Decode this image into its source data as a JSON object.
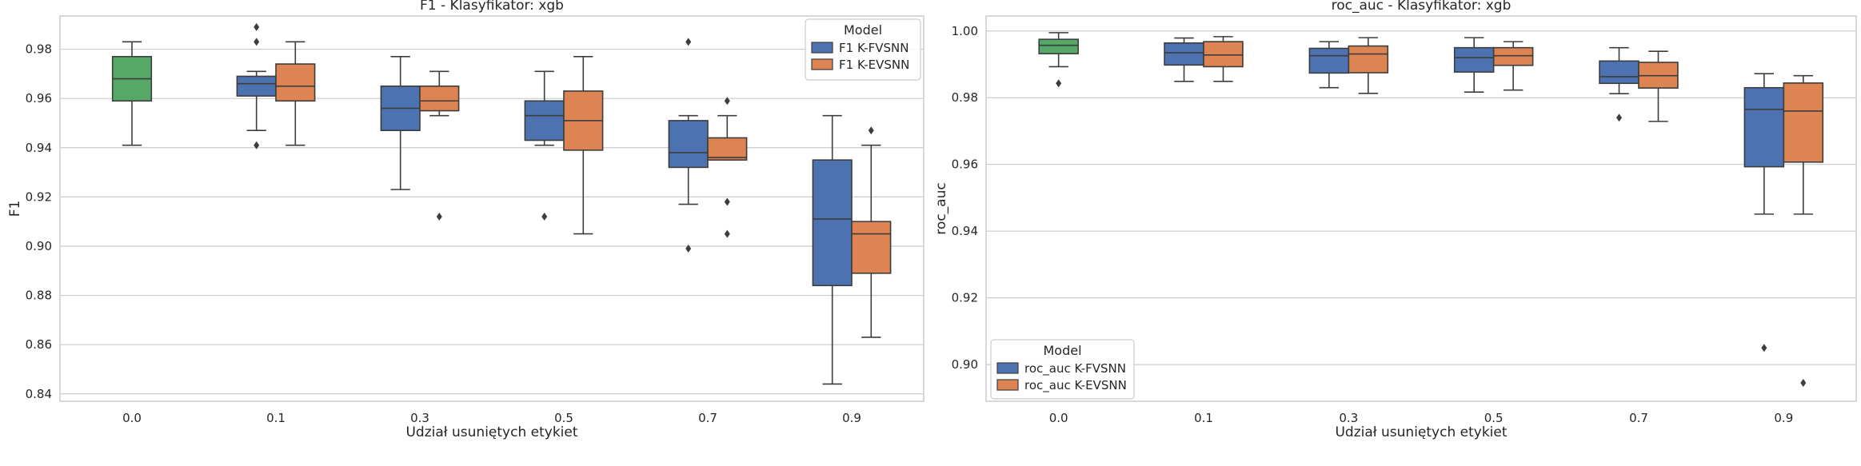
{
  "colors": {
    "baseline": "#55a868",
    "fvsnn": "#4c72b0",
    "evsnn": "#dd8452",
    "background": "#eaeaf2",
    "grid": "#cccccc",
    "line": "#3d3d3d"
  },
  "chart_data": [
    {
      "type": "box",
      "title": "F1 - Klasyfikator: xgb",
      "xlabel": "Udział usuniętych etykiet",
      "ylabel": "F1",
      "categories": [
        "0.0",
        "0.1",
        "0.3",
        "0.5",
        "0.7",
        "0.9"
      ],
      "ylim": [
        0.837,
        0.9935
      ],
      "yticks": [
        0.84,
        0.86,
        0.88,
        0.9,
        0.92,
        0.94,
        0.96,
        0.98
      ],
      "ytick_labels": [
        "0.84",
        "0.86",
        "0.88",
        "0.90",
        "0.92",
        "0.94",
        "0.96",
        "0.98"
      ],
      "grid": true,
      "legend": {
        "title": "Model",
        "position": "top-right",
        "entries": [
          {
            "label": "F1 K-FVSNN",
            "color_key": "fvsnn"
          },
          {
            "label": "F1 K-EVSNN",
            "color_key": "evsnn"
          }
        ]
      },
      "boxes": [
        {
          "category": "0.0",
          "series": "baseline",
          "slot": "single",
          "q1": 0.959,
          "median": 0.968,
          "q3": 0.977,
          "whislo": 0.941,
          "whishi": 0.983,
          "fliers": []
        },
        {
          "category": "0.1",
          "series": "F1 K-FVSNN",
          "slot": "left",
          "q1": 0.961,
          "median": 0.966,
          "q3": 0.969,
          "whislo": 0.947,
          "whishi": 0.971,
          "fliers": [
            0.941,
            0.983,
            0.989
          ]
        },
        {
          "category": "0.1",
          "series": "F1 K-EVSNN",
          "slot": "right",
          "q1": 0.959,
          "median": 0.965,
          "q3": 0.974,
          "whislo": 0.941,
          "whishi": 0.983,
          "fliers": []
        },
        {
          "category": "0.3",
          "series": "F1 K-FVSNN",
          "slot": "left",
          "q1": 0.947,
          "median": 0.956,
          "q3": 0.965,
          "whislo": 0.923,
          "whishi": 0.977,
          "fliers": []
        },
        {
          "category": "0.3",
          "series": "F1 K-EVSNN",
          "slot": "right",
          "q1": 0.955,
          "median": 0.959,
          "q3": 0.965,
          "whislo": 0.953,
          "whishi": 0.971,
          "fliers": [
            0.912
          ]
        },
        {
          "category": "0.5",
          "series": "F1 K-FVSNN",
          "slot": "left",
          "q1": 0.943,
          "median": 0.953,
          "q3": 0.959,
          "whislo": 0.941,
          "whishi": 0.971,
          "fliers": [
            0.912
          ]
        },
        {
          "category": "0.5",
          "series": "F1 K-EVSNN",
          "slot": "right",
          "q1": 0.939,
          "median": 0.951,
          "q3": 0.963,
          "whislo": 0.905,
          "whishi": 0.977,
          "fliers": []
        },
        {
          "category": "0.7",
          "series": "F1 K-FVSNN",
          "slot": "left",
          "q1": 0.932,
          "median": 0.938,
          "q3": 0.951,
          "whislo": 0.917,
          "whishi": 0.953,
          "fliers": [
            0.899,
            0.983
          ]
        },
        {
          "category": "0.7",
          "series": "F1 K-EVSNN",
          "slot": "right",
          "q1": 0.935,
          "median": 0.936,
          "q3": 0.944,
          "whislo": 0.935,
          "whishi": 0.953,
          "fliers": [
            0.905,
            0.918,
            0.959
          ]
        },
        {
          "category": "0.9",
          "series": "F1 K-FVSNN",
          "slot": "left",
          "q1": 0.884,
          "median": 0.911,
          "q3": 0.935,
          "whislo": 0.844,
          "whishi": 0.953,
          "fliers": []
        },
        {
          "category": "0.9",
          "series": "F1 K-EVSNN",
          "slot": "right",
          "q1": 0.889,
          "median": 0.905,
          "q3": 0.91,
          "whislo": 0.863,
          "whishi": 0.941,
          "fliers": [
            0.947
          ]
        }
      ]
    },
    {
      "type": "box",
      "title": "roc_auc - Klasyfikator: xgb",
      "xlabel": "Udział usuniętych etykiet",
      "ylabel": "roc_auc",
      "categories": [
        "0.0",
        "0.1",
        "0.3",
        "0.5",
        "0.7",
        "0.9"
      ],
      "ylim": [
        0.889,
        1.0045
      ],
      "yticks": [
        0.9,
        0.92,
        0.94,
        0.96,
        0.98,
        1.0
      ],
      "ytick_labels": [
        "0.90",
        "0.92",
        "0.94",
        "0.96",
        "0.98",
        "1.00"
      ],
      "grid": true,
      "legend": {
        "title": "Model",
        "position": "bottom-left",
        "entries": [
          {
            "label": "roc_auc K-FVSNN",
            "color_key": "fvsnn"
          },
          {
            "label": "roc_auc K-EVSNN",
            "color_key": "evsnn"
          }
        ]
      },
      "boxes": [
        {
          "category": "0.0",
          "series": "baseline",
          "slot": "single",
          "q1": 0.9932,
          "median": 0.9957,
          "q3": 0.9975,
          "whislo": 0.9893,
          "whishi": 0.9995,
          "fliers": [
            0.9843
          ]
        },
        {
          "category": "0.1",
          "series": "roc_auc K-FVSNN",
          "slot": "left",
          "q1": 0.9898,
          "median": 0.9935,
          "q3": 0.9964,
          "whislo": 0.9849,
          "whishi": 0.9979,
          "fliers": []
        },
        {
          "category": "0.1",
          "series": "roc_auc K-EVSNN",
          "slot": "right",
          "q1": 0.9893,
          "median": 0.9928,
          "q3": 0.9968,
          "whislo": 0.9849,
          "whishi": 0.9983,
          "fliers": []
        },
        {
          "category": "0.3",
          "series": "roc_auc K-FVSNN",
          "slot": "left",
          "q1": 0.9874,
          "median": 0.9926,
          "q3": 0.9948,
          "whislo": 0.983,
          "whishi": 0.9968,
          "fliers": []
        },
        {
          "category": "0.3",
          "series": "roc_auc K-EVSNN",
          "slot": "right",
          "q1": 0.9875,
          "median": 0.9931,
          "q3": 0.9955,
          "whislo": 0.9813,
          "whishi": 0.998,
          "fliers": []
        },
        {
          "category": "0.5",
          "series": "roc_auc K-FVSNN",
          "slot": "left",
          "q1": 0.9877,
          "median": 0.992,
          "q3": 0.995,
          "whislo": 0.9817,
          "whishi": 0.998,
          "fliers": []
        },
        {
          "category": "0.5",
          "series": "roc_auc K-EVSNN",
          "slot": "right",
          "q1": 0.9897,
          "median": 0.9926,
          "q3": 0.995,
          "whislo": 0.9823,
          "whishi": 0.9968,
          "fliers": []
        },
        {
          "category": "0.7",
          "series": "roc_auc K-FVSNN",
          "slot": "left",
          "q1": 0.9843,
          "median": 0.9863,
          "q3": 0.991,
          "whislo": 0.9812,
          "whishi": 0.995,
          "fliers": [
            0.974
          ]
        },
        {
          "category": "0.7",
          "series": "roc_auc K-EVSNN",
          "slot": "right",
          "q1": 0.9829,
          "median": 0.9866,
          "q3": 0.9906,
          "whislo": 0.9729,
          "whishi": 0.9939,
          "fliers": []
        },
        {
          "category": "0.9",
          "series": "roc_auc K-FVSNN",
          "slot": "left",
          "q1": 0.9593,
          "median": 0.9765,
          "q3": 0.983,
          "whislo": 0.9451,
          "whishi": 0.9872,
          "fliers": [
            0.905
          ]
        },
        {
          "category": "0.9",
          "series": "roc_auc K-EVSNN",
          "slot": "right",
          "q1": 0.9607,
          "median": 0.976,
          "q3": 0.9844,
          "whislo": 0.9451,
          "whishi": 0.9866,
          "fliers": [
            0.8945
          ]
        }
      ]
    }
  ]
}
